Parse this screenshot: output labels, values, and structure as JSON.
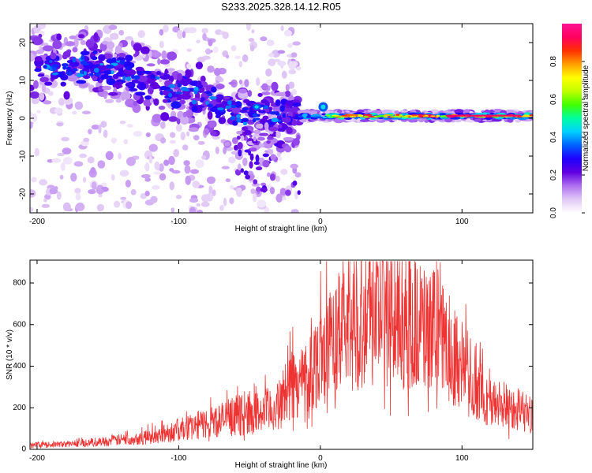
{
  "title": "S233.2025.328.14.12.R05",
  "chart_data": [
    {
      "type": "heatmap",
      "xlabel": "Height of straight line (km)",
      "ylabel": "Frequency (Hz)",
      "xlim": [
        -205,
        150
      ],
      "ylim": [
        -25,
        25
      ],
      "x_ticks": [
        -200,
        -100,
        0,
        100
      ],
      "y_ticks": [
        -20,
        -10,
        0,
        10,
        20
      ],
      "colorbar": {
        "label": "Normalized spectral amplitude",
        "range": [
          0,
          1
        ],
        "ticks": [
          "0.0",
          "0.2",
          "0.4",
          "0.6",
          "0.8"
        ],
        "colors": [
          "#ffffff",
          "#e0c8f5",
          "#b070f0",
          "#6000e0",
          "#2000ff",
          "#0060ff",
          "#00d0ff",
          "#00ffa0",
          "#40ff00",
          "#c0ff00",
          "#ffff00",
          "#ffa000",
          "#ff3000",
          "#ff0060",
          "#ff1493"
        ]
      },
      "ridge": [
        {
          "x": -195,
          "f": 13
        },
        {
          "x": -180,
          "f": 13
        },
        {
          "x": -160,
          "f": 14
        },
        {
          "x": -140,
          "f": 13
        },
        {
          "x": -120,
          "f": 9
        },
        {
          "x": -100,
          "f": 7
        },
        {
          "x": -80,
          "f": 5
        },
        {
          "x": -60,
          "f": 1
        },
        {
          "x": -40,
          "f": 1
        },
        {
          "x": -20,
          "f": 0.5
        },
        {
          "x": 0,
          "f": 1
        },
        {
          "x": 20,
          "f": 0.5
        },
        {
          "x": 60,
          "f": 0.5
        },
        {
          "x": 100,
          "f": 1
        },
        {
          "x": 150,
          "f": 1
        }
      ]
    },
    {
      "type": "line",
      "xlabel": "Height of straight line (km)",
      "ylabel": "SNR (10 * v/v)",
      "xlim": [
        -205,
        150
      ],
      "ylim": [
        0,
        910
      ],
      "x_ticks": [
        -200,
        -100,
        0,
        100
      ],
      "y_ticks": [
        0,
        200,
        400,
        600,
        800
      ],
      "color": "#ee3333",
      "envelope": [
        {
          "x": -205,
          "y": 20
        },
        {
          "x": -180,
          "y": 25
        },
        {
          "x": -150,
          "y": 40
        },
        {
          "x": -120,
          "y": 60
        },
        {
          "x": -90,
          "y": 110
        },
        {
          "x": -60,
          "y": 160
        },
        {
          "x": -40,
          "y": 180
        },
        {
          "x": -30,
          "y": 200
        },
        {
          "x": -25,
          "y": 280
        },
        {
          "x": -20,
          "y": 300
        },
        {
          "x": -10,
          "y": 350
        },
        {
          "x": 0,
          "y": 450
        },
        {
          "x": 20,
          "y": 600
        },
        {
          "x": 40,
          "y": 660
        },
        {
          "x": 60,
          "y": 620
        },
        {
          "x": 80,
          "y": 560
        },
        {
          "x": 100,
          "y": 420
        },
        {
          "x": 110,
          "y": 300
        },
        {
          "x": 120,
          "y": 220
        },
        {
          "x": 135,
          "y": 210
        },
        {
          "x": 145,
          "y": 180
        },
        {
          "x": 150,
          "y": 160
        }
      ]
    }
  ]
}
